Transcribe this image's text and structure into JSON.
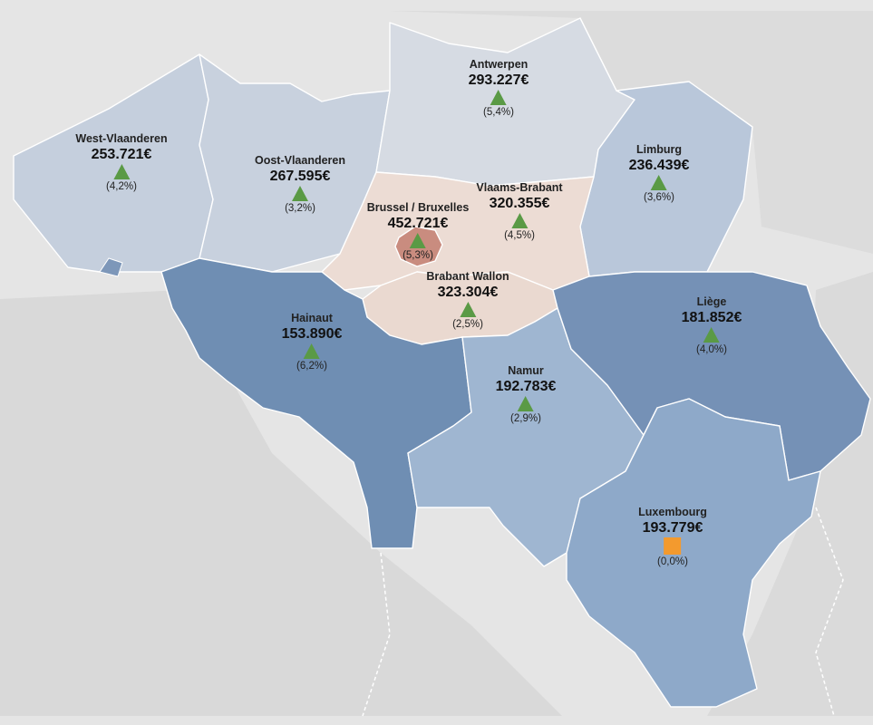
{
  "colors": {
    "increase_marker": "#5a9a45",
    "neutral_marker": "#f39a2e",
    "high_value": "#c48a7e",
    "low_value": "#6f8fb3"
  },
  "provinces": [
    {
      "id": "west-vlaanderen",
      "name": "West-Vlaanderen",
      "value": "253.721€",
      "change": "(4,2%)",
      "trend": "up",
      "icon": "triangle-up-icon"
    },
    {
      "id": "oost-vlaanderen",
      "name": "Oost-Vlaanderen",
      "value": "267.595€",
      "change": "(3,2%)",
      "trend": "up",
      "icon": "triangle-up-icon"
    },
    {
      "id": "antwerpen",
      "name": "Antwerpen",
      "value": "293.227€",
      "change": "(5,4%)",
      "trend": "up",
      "icon": "triangle-up-icon"
    },
    {
      "id": "limburg",
      "name": "Limburg",
      "value": "236.439€",
      "change": "(3,6%)",
      "trend": "up",
      "icon": "triangle-up-icon"
    },
    {
      "id": "vlaams-brabant",
      "name": "Vlaams-Brabant",
      "value": "320.355€",
      "change": "(4,5%)",
      "trend": "up",
      "icon": "triangle-up-icon"
    },
    {
      "id": "brussel",
      "name": "Brussel / Bruxelles",
      "value": "452.721€",
      "change": "(5,3%)",
      "trend": "up",
      "icon": "triangle-up-icon"
    },
    {
      "id": "brabant-wallon",
      "name": "Brabant Wallon",
      "value": "323.304€",
      "change": "(2,5%)",
      "trend": "up",
      "icon": "triangle-up-icon"
    },
    {
      "id": "hainaut",
      "name": "Hainaut",
      "value": "153.890€",
      "change": "(6,2%)",
      "trend": "up",
      "icon": "triangle-up-icon"
    },
    {
      "id": "liege",
      "name": "Liège",
      "value": "181.852€",
      "change": "(4,0%)",
      "trend": "up",
      "icon": "triangle-up-icon"
    },
    {
      "id": "namur",
      "name": "Namur",
      "value": "192.783€",
      "change": "(2,9%)",
      "trend": "up",
      "icon": "triangle-up-icon"
    },
    {
      "id": "luxembourg",
      "name": "Luxembourg",
      "value": "193.779€",
      "change": "(0,0%)",
      "trend": "flat",
      "icon": "square-icon"
    }
  ]
}
